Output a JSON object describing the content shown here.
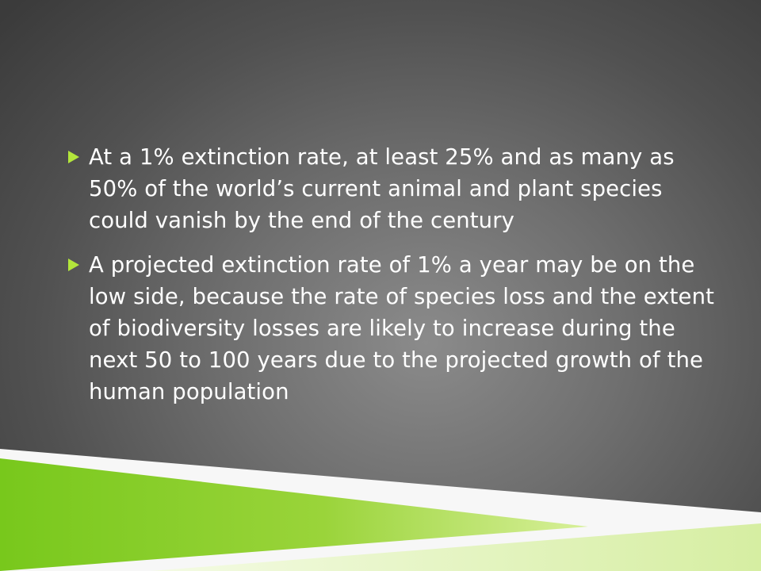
{
  "slide": {
    "bullets": [
      {
        "icon": "triangle-bullet-icon",
        "text": "At a 1% extinction rate, at least 25% and as many as 50% of the world’s current animal and plant species could vanish by the end of the century"
      },
      {
        "icon": "triangle-bullet-icon",
        "text": "A projected extinction rate of 1% a year may be on the low side, because the rate of species loss and the extent of biodiversity losses are likely to increase during the next 50 to 100 years due to the projected growth of the human population"
      }
    ]
  },
  "colors": {
    "bullet_accent": "#b3e63b",
    "text": "#ffffff",
    "background": "#4f4f4f",
    "decor_green": "#8ccc1f"
  }
}
